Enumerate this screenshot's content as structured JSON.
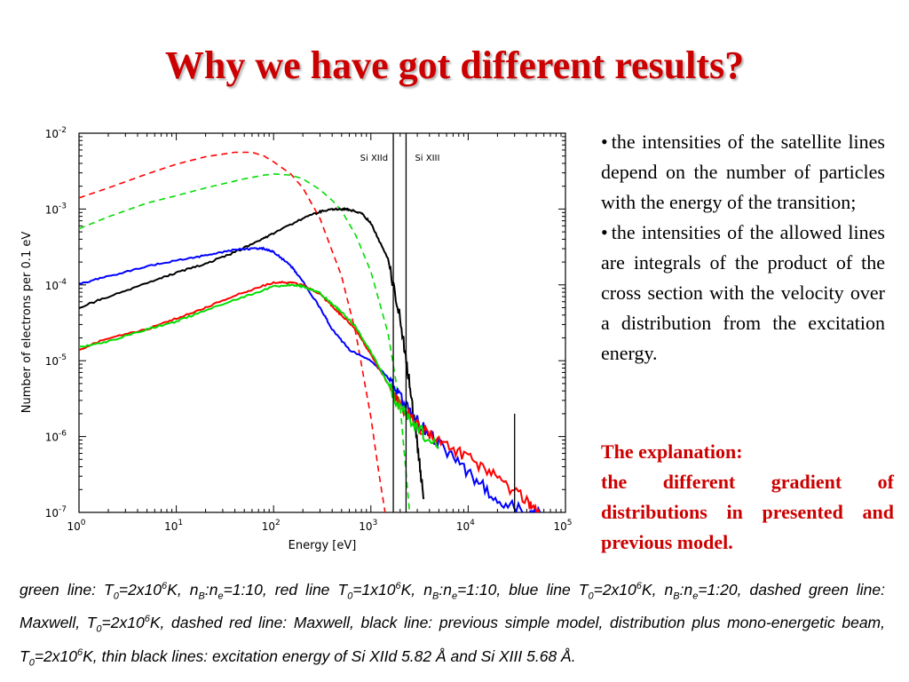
{
  "title": "Why we have got different results?",
  "bullets": [
    "the intensities of the satellite lines depend on the number of particles with the energy of the transition;",
    "the intensities of the allowed lines are integrals of the product  of the cross section with the velocity over a distribution from the excitation energy."
  ],
  "explanation": {
    "title": "The explanation:",
    "text": "the different gradient of distributions in presented and previous model."
  },
  "caption_parts": [
    "green line: T",
    "0",
    "=2x10",
    "6",
    "K, n",
    "B",
    ":n",
    "e",
    "=1:10, red line T",
    "0",
    "=1x10",
    "6",
    "K, n",
    "B",
    ":n",
    "e",
    "=1:10, blue line T",
    "0",
    "=2x10",
    "6",
    "K, n",
    "B",
    ":n",
    "e",
    "=1:20, dashed green line: Maxwell, T",
    "0",
    "=2x10",
    "6",
    "K, dashed red line: Maxwell, black line: previous simple model, distribution plus mono-energetic beam, T",
    "0",
    "=2x10",
    "6",
    "K, thin black lines: excitation energy of Si XIId 5.82 Å and Si XIII 5.68 Å."
  ],
  "chart_data": {
    "type": "line",
    "xscale": "log",
    "yscale": "log",
    "xlim": [
      1,
      100000
    ],
    "ylim": [
      1e-07,
      0.01
    ],
    "xlabel": "Energy [eV]",
    "ylabel": "Number of electrons per 0.1 eV",
    "x_tick_labels": [
      "10^0",
      "10^1",
      "10^2",
      "10^3",
      "10^4",
      "10^5"
    ],
    "y_tick_labels": [
      "10^-7",
      "10^-6",
      "10^-5",
      "10^-4",
      "10^-3",
      "10^-2"
    ],
    "vertical_lines": [
      {
        "label": "Si XIId",
        "x": 1700
      },
      {
        "label": "Si XIII",
        "x": 2300
      },
      {
        "label": "",
        "x": 30000,
        "y_top": 2e-06
      }
    ],
    "series": [
      {
        "style": "dashed",
        "color": "#ff0000",
        "x": [
          1,
          2,
          5,
          10,
          20,
          40,
          60,
          80,
          100,
          150,
          200,
          300,
          500,
          700,
          1000,
          1200,
          1400
        ],
        "y": [
          0.0014,
          0.0019,
          0.0029,
          0.0039,
          0.0049,
          0.0056,
          0.0056,
          0.005,
          0.0042,
          0.0029,
          0.0019,
          0.00075,
          0.00013,
          2.3e-05,
          1.8e-06,
          3.5e-07,
          1e-07
        ]
      },
      {
        "style": "dashed",
        "color": "#00dd00",
        "x": [
          1,
          2,
          5,
          10,
          20,
          50,
          80,
          100,
          150,
          200,
          300,
          400,
          500,
          700,
          1000,
          1500,
          2000,
          2500
        ],
        "y": [
          0.00055,
          0.00079,
          0.0012,
          0.0015,
          0.0019,
          0.0025,
          0.0028,
          0.0029,
          0.0028,
          0.0025,
          0.0018,
          0.0013,
          0.00095,
          0.00045,
          0.00015,
          2.3e-05,
          2.5e-06,
          1e-07
        ]
      },
      {
        "style": "solid",
        "color": "#000000",
        "x": [
          1,
          2,
          5,
          10,
          20,
          40,
          70,
          100,
          200,
          300,
          400,
          500,
          600,
          800,
          1000,
          1500,
          2000,
          2500,
          3000,
          3500
        ],
        "y": [
          5e-05,
          7e-05,
          0.000105,
          0.000145,
          0.00019,
          0.00027,
          0.00038,
          0.00048,
          0.00075,
          0.00092,
          0.001,
          0.001,
          0.00098,
          0.00088,
          0.00065,
          0.00022,
          3.6e-05,
          5e-06,
          8e-07,
          1.5e-07
        ]
      },
      {
        "style": "solid",
        "color": "#0000ff",
        "x": [
          1,
          2,
          5,
          10,
          20,
          40,
          60,
          80,
          100,
          150,
          200,
          300,
          400,
          600,
          1000,
          1500,
          2000,
          3000,
          5000,
          10000,
          20000,
          40000,
          55000
        ],
        "y": [
          0.000103,
          0.00013,
          0.000175,
          0.00021,
          0.000245,
          0.00029,
          0.0003,
          0.0003,
          0.00027,
          0.00018,
          0.00011,
          5e-05,
          2.6e-05,
          1.4e-05,
          1e-05,
          6e-06,
          3.2e-06,
          1.6e-06,
          8e-07,
          3.2e-07,
          1.5e-07,
          1e-07,
          1e-07
        ]
      },
      {
        "style": "solid",
        "color": "#ff0000",
        "x": [
          1,
          2,
          5,
          10,
          20,
          50,
          100,
          150,
          200,
          300,
          400,
          500,
          700,
          1000,
          1500,
          2000,
          3000,
          5000,
          10000,
          20000,
          40000,
          55000
        ],
        "y": [
          1.4e-05,
          2e-05,
          2.6e-05,
          3.6e-05,
          5e-05,
          8e-05,
          0.000108,
          0.000107,
          0.0001,
          7.6e-05,
          5.2e-05,
          4e-05,
          2.6e-05,
          1.2e-05,
          5e-06,
          2.5e-06,
          1.4e-06,
          8.5e-07,
          5.3e-07,
          2.8e-07,
          1.4e-07,
          1e-07
        ]
      },
      {
        "style": "solid",
        "color": "#00dd00",
        "x": [
          1,
          2,
          5,
          10,
          20,
          50,
          100,
          150,
          200,
          300,
          400,
          500,
          700,
          1000,
          1500,
          2000,
          3000,
          5000
        ],
        "y": [
          1.5e-05,
          1.8e-05,
          2.6e-05,
          3.3e-05,
          4.6e-05,
          7e-05,
          9.5e-05,
          0.0001,
          9.5e-05,
          7.8e-05,
          5.6e-05,
          4.4e-05,
          2.8e-05,
          1.3e-05,
          5e-06,
          2.3e-06,
          1.3e-06,
          7e-07
        ]
      }
    ]
  }
}
